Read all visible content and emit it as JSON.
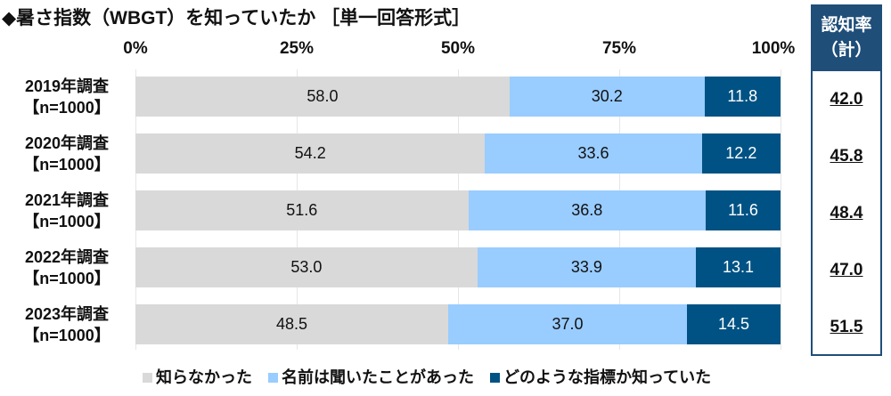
{
  "chart_data": {
    "type": "bar",
    "orientation": "horizontal-stacked",
    "title": "◆暑さ指数（WBGT）を知っていたか ［単一回答形式］",
    "xlim": [
      0,
      100
    ],
    "x_ticks": [
      "0%",
      "25%",
      "50%",
      "75%",
      "100%"
    ],
    "grid": true,
    "categories": [
      {
        "line1": "2019年調査",
        "line2": "【n=1000】"
      },
      {
        "line1": "2020年調査",
        "line2": "【n=1000】"
      },
      {
        "line1": "2021年調査",
        "line2": "【n=1000】"
      },
      {
        "line1": "2022年調査",
        "line2": "【n=1000】"
      },
      {
        "line1": "2023年調査",
        "line2": "【n=1000】"
      }
    ],
    "series": [
      {
        "name": "知らなかった",
        "color": "#d9d9d9",
        "text_color": "#111111",
        "values": [
          58.0,
          54.2,
          51.6,
          53.0,
          48.5
        ]
      },
      {
        "name": "名前は聞いたことがあった",
        "color": "#99ccff",
        "text_color": "#111111",
        "values": [
          30.2,
          33.6,
          36.8,
          33.9,
          37.0
        ]
      },
      {
        "name": "どのような指標か知っていた",
        "color": "#005284",
        "text_color": "#ffffff",
        "values": [
          11.8,
          12.2,
          11.6,
          13.1,
          14.5
        ]
      }
    ],
    "legend_position": "bottom",
    "side_panel": {
      "header_line1": "認知率",
      "header_line2": "（計）",
      "values": [
        "42.0",
        "45.8",
        "48.4",
        "47.0",
        "51.5"
      ],
      "color": "#1f4e79"
    }
  }
}
